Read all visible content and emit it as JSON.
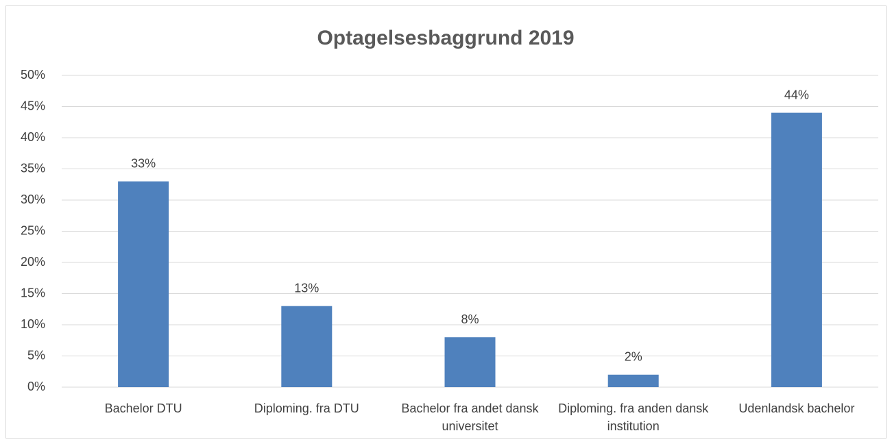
{
  "chart_data": {
    "type": "bar",
    "title": "Optagelsesbaggrund 2019",
    "categories": [
      "Bachelor DTU",
      "Diploming. fra DTU",
      "Bachelor fra andet dansk universitet",
      "Diploming. fra anden dansk institution",
      "Udenlandsk bachelor"
    ],
    "values": [
      33,
      13,
      8,
      2,
      44
    ],
    "value_labels": [
      "33%",
      "13%",
      "8%",
      "2%",
      "44%"
    ],
    "color": "#4f81bd",
    "ylim": [
      0,
      50
    ],
    "yticks": [
      {
        "value": 0,
        "label": "0%"
      },
      {
        "value": 5,
        "label": "5%"
      },
      {
        "value": 10,
        "label": "10%"
      },
      {
        "value": 15,
        "label": "15%"
      },
      {
        "value": 20,
        "label": "20%"
      },
      {
        "value": 25,
        "label": "25%"
      },
      {
        "value": 30,
        "label": "30%"
      },
      {
        "value": 35,
        "label": "35%"
      },
      {
        "value": 40,
        "label": "40%"
      },
      {
        "value": 45,
        "label": "45%"
      },
      {
        "value": 50,
        "label": "50%"
      }
    ],
    "grid": true
  }
}
